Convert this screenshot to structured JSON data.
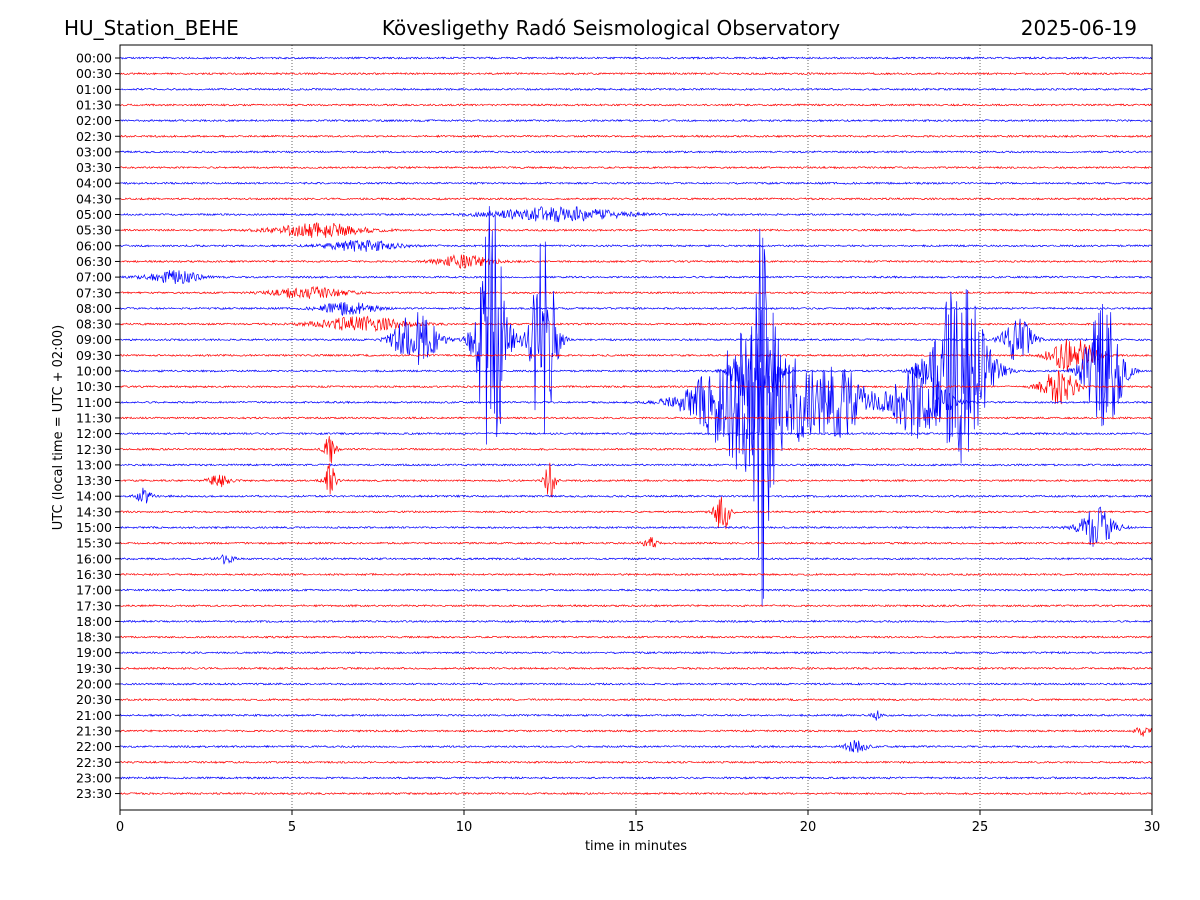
{
  "header": {
    "station": "HU_Station_BEHE",
    "title": "Kövesligethy Radó Seismological Observatory",
    "date": "2025-06-19"
  },
  "chart_data": {
    "type": "line",
    "title": "Kövesligethy Radó Seismological Observatory",
    "xlabel": "time in minutes",
    "ylabel": "UTC (local time = UTC + 02:00)",
    "xlim": [
      0,
      30
    ],
    "x_ticks": [
      "0",
      "5",
      "10",
      "15",
      "20",
      "25",
      "30"
    ],
    "x_tick_values": [
      0,
      5,
      10,
      15,
      20,
      25,
      30
    ],
    "grid": "vertical dotted at x ticks",
    "trace_colors": [
      "#0000ff",
      "#ff0000"
    ],
    "rows": [
      "00:00",
      "00:30",
      "01:00",
      "01:30",
      "02:00",
      "02:30",
      "03:00",
      "03:30",
      "04:00",
      "04:30",
      "05:00",
      "05:30",
      "06:00",
      "06:30",
      "07:00",
      "07:30",
      "08:00",
      "08:30",
      "09:00",
      "09:30",
      "10:00",
      "10:30",
      "11:00",
      "11:30",
      "12:00",
      "12:30",
      "13:00",
      "13:30",
      "14:00",
      "14:30",
      "15:00",
      "15:30",
      "16:00",
      "16:30",
      "17:00",
      "17:30",
      "18:00",
      "18:30",
      "19:00",
      "19:30",
      "20:00",
      "20:30",
      "21:00",
      "21:30",
      "22:00",
      "22:30",
      "23:00",
      "23:30"
    ],
    "events": [
      {
        "row": "05:00",
        "t": 12.7,
        "amp": 0.5,
        "dur": 3.5
      },
      {
        "row": "05:30",
        "t": 5.8,
        "amp": 0.45,
        "dur": 2.5
      },
      {
        "row": "06:00",
        "t": 7.0,
        "amp": 0.35,
        "dur": 2.0
      },
      {
        "row": "06:30",
        "t": 10.0,
        "amp": 0.4,
        "dur": 1.5
      },
      {
        "row": "07:00",
        "t": 1.6,
        "amp": 0.4,
        "dur": 1.5
      },
      {
        "row": "07:30",
        "t": 5.5,
        "amp": 0.35,
        "dur": 2.0
      },
      {
        "row": "08:00",
        "t": 6.6,
        "amp": 0.4,
        "dur": 1.5
      },
      {
        "row": "08:30",
        "t": 7.0,
        "amp": 0.45,
        "dur": 2.5
      },
      {
        "row": "09:00",
        "t": 8.6,
        "amp": 1.8,
        "dur": 1.2
      },
      {
        "row": "09:00",
        "t": 10.8,
        "amp": 9.0,
        "dur": 0.8
      },
      {
        "row": "09:00",
        "t": 12.3,
        "amp": 7.0,
        "dur": 0.7
      },
      {
        "row": "09:00",
        "t": 26.1,
        "amp": 1.5,
        "dur": 0.8
      },
      {
        "row": "09:30",
        "t": 27.7,
        "amp": 1.2,
        "dur": 1.2
      },
      {
        "row": "10:00",
        "t": 18.5,
        "amp": 4.5,
        "dur": 1.0
      },
      {
        "row": "10:00",
        "t": 24.4,
        "amp": 6.0,
        "dur": 1.5
      },
      {
        "row": "10:00",
        "t": 28.6,
        "amp": 4.5,
        "dur": 1.0
      },
      {
        "row": "10:30",
        "t": 27.3,
        "amp": 1.1,
        "dur": 1.0
      },
      {
        "row": "11:00",
        "t": 18.5,
        "amp": 5.0,
        "dur": 3.0
      },
      {
        "row": "11:00",
        "t": 21.0,
        "amp": 2.0,
        "dur": 1.5
      },
      {
        "row": "11:00",
        "t": 23.2,
        "amp": 2.5,
        "dur": 1.5
      },
      {
        "row": "11:00",
        "t": 18.7,
        "amp": 9.0,
        "dur": 0.4
      },
      {
        "row": "12:30",
        "t": 6.1,
        "amp": 1.0,
        "dur": 0.3
      },
      {
        "row": "13:30",
        "t": 6.1,
        "amp": 1.2,
        "dur": 0.3
      },
      {
        "row": "13:30",
        "t": 12.5,
        "amp": 1.2,
        "dur": 0.3
      },
      {
        "row": "13:30",
        "t": 2.9,
        "amp": 0.4,
        "dur": 0.6
      },
      {
        "row": "14:00",
        "t": 0.7,
        "amp": 0.5,
        "dur": 0.4
      },
      {
        "row": "14:30",
        "t": 17.5,
        "amp": 1.5,
        "dur": 0.4
      },
      {
        "row": "15:00",
        "t": 28.4,
        "amp": 1.3,
        "dur": 1.0
      },
      {
        "row": "15:30",
        "t": 15.4,
        "amp": 0.4,
        "dur": 0.4
      },
      {
        "row": "16:00",
        "t": 3.1,
        "amp": 0.35,
        "dur": 0.4
      },
      {
        "row": "21:00",
        "t": 22.0,
        "amp": 0.3,
        "dur": 0.3
      },
      {
        "row": "22:00",
        "t": 21.4,
        "amp": 0.4,
        "dur": 0.6
      },
      {
        "row": "21:30",
        "t": 29.8,
        "amp": 0.35,
        "dur": 0.5
      }
    ]
  }
}
